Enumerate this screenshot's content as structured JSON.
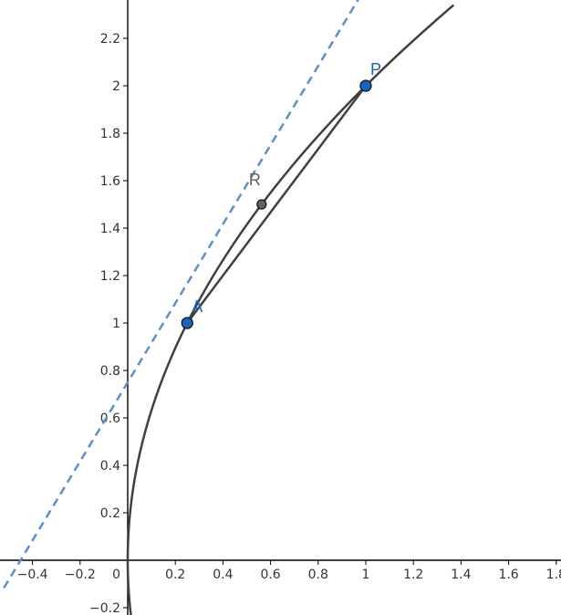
{
  "chart_data": {
    "type": "line",
    "title": "",
    "xlabel": "",
    "ylabel": "",
    "xlim": [
      -0.52,
      1.83
    ],
    "ylim": [
      -0.26,
      2.34
    ],
    "grid": false,
    "x_ticks": [
      -0.4,
      -0.2,
      0,
      0.2,
      0.4,
      0.6,
      0.8,
      1,
      1.2,
      1.4,
      1.6,
      1.8
    ],
    "x_tick_labels": [
      "−0.4",
      "−0.2",
      "0",
      "0.2",
      "0.4",
      "0.6",
      "0.8",
      "1",
      "1.2",
      "1.4",
      "1.6",
      "1.8"
    ],
    "y_ticks": [
      -0.2,
      0.2,
      0.4,
      0.6,
      0.8,
      1,
      1.2,
      1.4,
      1.6,
      1.8,
      2,
      2.2
    ],
    "y_tick_labels": [
      "−0.2",
      "0.2",
      "0.4",
      "0.6",
      "0.8",
      "1",
      "1.2",
      "1.4",
      "1.6",
      "1.8",
      "2",
      "2.2"
    ],
    "curve": {
      "equation": "y^2 = 4x",
      "color": "#404040"
    },
    "points": [
      {
        "name": "A",
        "x": 0.25,
        "y": 1,
        "color": "#1565c0",
        "label_color": "#1565c0"
      },
      {
        "name": "P",
        "x": 1,
        "y": 2,
        "color": "#1565c0",
        "label_color": "#1565c0"
      },
      {
        "name": "R",
        "x": 0.5625,
        "y": 1.5,
        "color": "#616161",
        "label_color": "#616161"
      }
    ],
    "segments": [
      {
        "from": "A",
        "to": "P",
        "color": "#404040"
      }
    ],
    "dashed_line": {
      "slope": 1.6667,
      "intercept": 0.75,
      "color": "#5b8fd0"
    }
  }
}
